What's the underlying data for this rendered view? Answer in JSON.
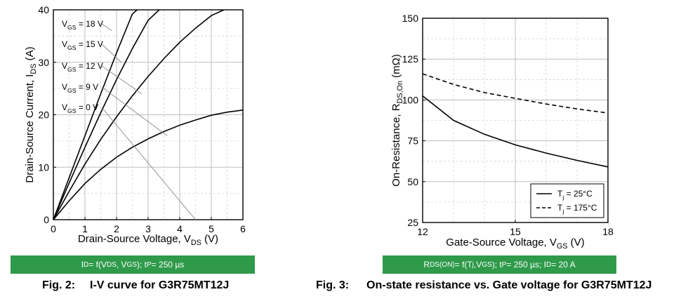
{
  "chart_data": [
    {
      "type": "line",
      "xlabel": "Drain-Source Voltage, V",
      "xlabel_sub": "DS",
      "xlabel_tail": " (V)",
      "ylabel": "Drain-Source Current, I",
      "ylabel_sub": "DS",
      "ylabel_tail": " (A)",
      "xlim": [
        0,
        6
      ],
      "ylim": [
        0,
        40
      ],
      "xticks": [
        "0",
        "1",
        "2",
        "3",
        "4",
        "5",
        "6"
      ],
      "yticks": [
        "0",
        "10",
        "20",
        "30",
        "40"
      ],
      "grid": true,
      "series": [
        {
          "name": "VGS = 18 V",
          "x": [
            0,
            0.5,
            1,
            1.5,
            2,
            2.5,
            2.65
          ],
          "y": [
            0,
            8.0,
            16.0,
            24.0,
            31.8,
            39.2,
            40
          ]
        },
        {
          "name": "VGS = 15 V",
          "x": [
            0,
            0.5,
            1,
            1.5,
            2,
            2.5,
            3,
            3.35
          ],
          "y": [
            0,
            7.0,
            13.8,
            20.4,
            26.7,
            32.6,
            38.0,
            40
          ]
        },
        {
          "name": "VGS = 12 V",
          "x": [
            0,
            0.5,
            1,
            1.5,
            2,
            2.5,
            3,
            3.5,
            4,
            4.5,
            5,
            5.4
          ],
          "y": [
            0,
            5.4,
            10.6,
            15.3,
            19.6,
            23.6,
            27.3,
            30.7,
            33.8,
            36.5,
            38.9,
            40
          ]
        },
        {
          "name": "VGS = 9 V",
          "x": [
            0,
            0.5,
            1,
            1.5,
            2,
            2.5,
            3,
            3.5,
            4,
            4.5,
            5,
            5.5,
            6
          ],
          "y": [
            0,
            3.6,
            6.9,
            9.6,
            11.9,
            13.8,
            15.4,
            16.8,
            18.0,
            19.0,
            19.9,
            20.5,
            20.9
          ]
        }
      ],
      "annotations": [
        {
          "pre": "V",
          "sub": "GS",
          "post": " = 18 V"
        },
        {
          "pre": "V",
          "sub": "GS",
          "post": " = 15 V"
        },
        {
          "pre": "V",
          "sub": "GS",
          "post": " = 12 V"
        },
        {
          "pre": "V",
          "sub": "GS",
          "post": " = 9 V"
        },
        {
          "pre": "V",
          "sub": "GS",
          "post": " = 0 V"
        }
      ]
    },
    {
      "type": "line",
      "xlabel": "Gate-Source Voltage, V",
      "xlabel_sub": "GS",
      "xlabel_tail": " (V)",
      "ylabel": "On-Resistance, R",
      "ylabel_sub": "DS,On",
      "ylabel_tail": " (mΩ)",
      "xlim": [
        12,
        18
      ],
      "ylim": [
        25,
        150
      ],
      "xticks": [
        "12",
        "15",
        "18"
      ],
      "yticks": [
        "25",
        "50",
        "75",
        "100",
        "125",
        "150"
      ],
      "grid": true,
      "legend_position": "bottom-right",
      "series": [
        {
          "name": "Tj = 25°C",
          "legend_pre": "T",
          "legend_sub": "j",
          "legend_post": " = 25°C",
          "style": "solid",
          "x": [
            12,
            13,
            14,
            15,
            16,
            17,
            18
          ],
          "y": [
            102.5,
            87.5,
            79,
            72.5,
            67.5,
            63,
            59
          ]
        },
        {
          "name": "Tj = 175°C",
          "legend_pre": "T",
          "legend_sub": "j",
          "legend_post": " = 175°C",
          "style": "dashed",
          "x": [
            12,
            13,
            14,
            15,
            16,
            17,
            18
          ],
          "y": [
            116,
            109.5,
            104.5,
            101,
            97.5,
            94.5,
            92
          ]
        }
      ]
    }
  ],
  "banners": {
    "left": "I<sub>D</sub> = f(V<sub>DS</sub>, V<sub>GS</sub>); t<sub>P</sub> = 250 µs",
    "right": "R<sub>DS(ON)</sub> = f(T<sub>j</sub>,V<sub>GS</sub>); t<sub>P</sub> = 250 µs; I<sub>D</sub> = 20 A"
  },
  "captions": {
    "left_label": "Fig. 2:",
    "left_text": "I-V curve for G3R75MT12J",
    "right_label": "Fig. 3:",
    "right_text": "On-state resistance vs. Gate voltage for G3R75MT12J"
  },
  "colors": {
    "banner": "#2e9a4a",
    "line": "#000000",
    "grid": "#bdbdbd"
  }
}
